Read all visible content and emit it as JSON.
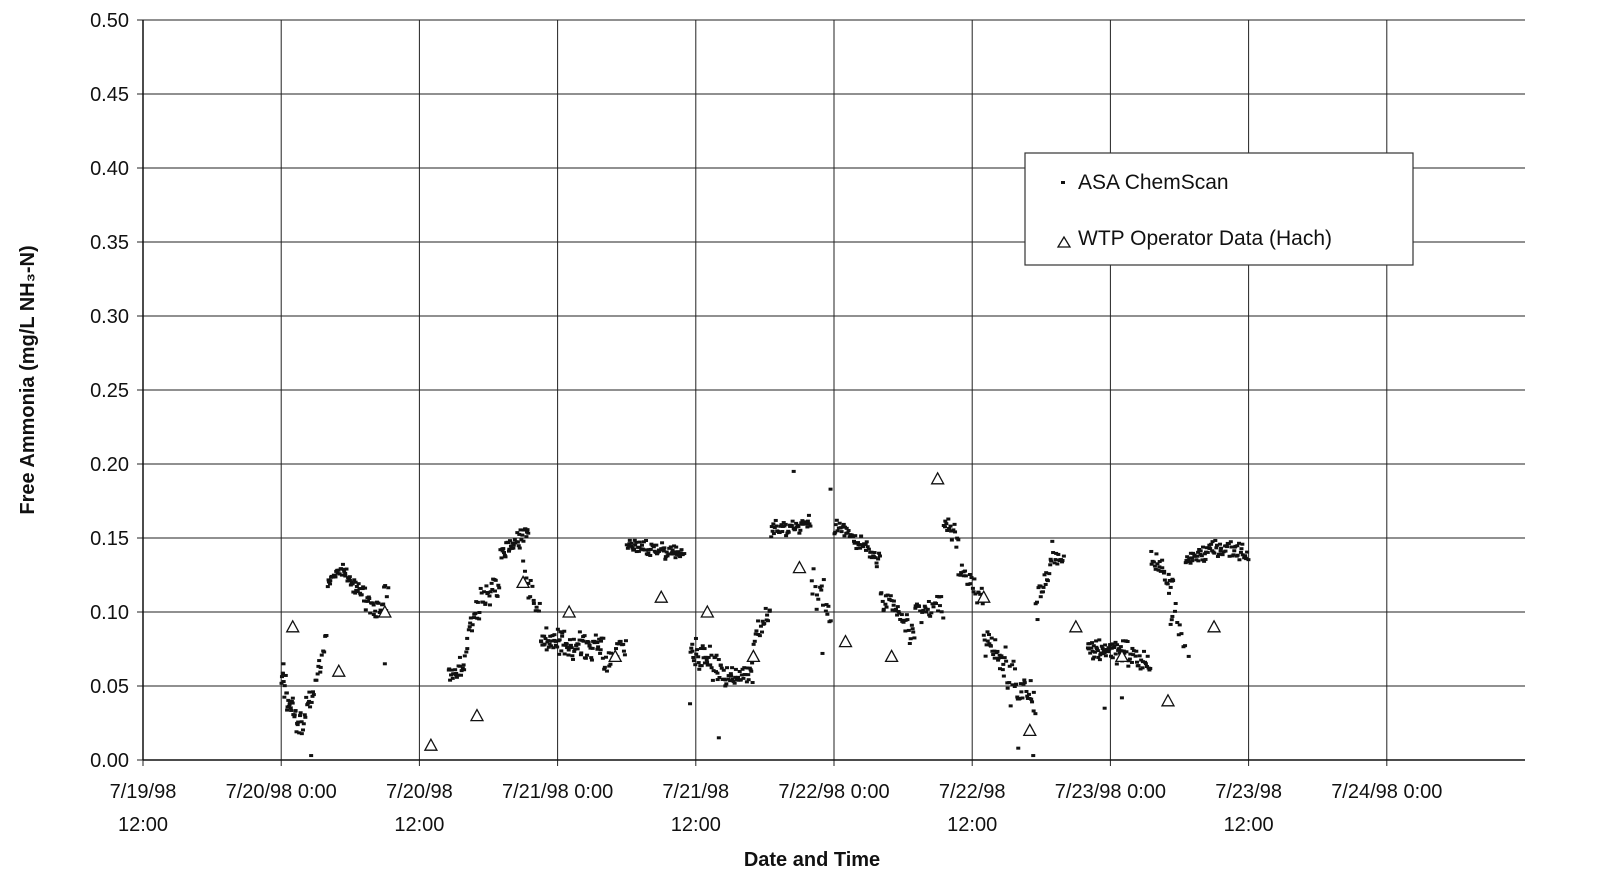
{
  "chart_data": {
    "type": "scatter",
    "xlabel": "Date and Time",
    "ylabel": "Free Ammonia (mg/L NH₃-N)",
    "ylim": [
      0,
      0.5
    ],
    "xlim_hours": [
      -12,
      108
    ],
    "x_ticks": [
      {
        "hour": -12,
        "line1": "7/19/98",
        "line2": "12:00"
      },
      {
        "hour": 0,
        "line1": "7/20/98 0:00",
        "line2": ""
      },
      {
        "hour": 12,
        "line1": "7/20/98",
        "line2": "12:00"
      },
      {
        "hour": 24,
        "line1": "7/21/98 0:00",
        "line2": ""
      },
      {
        "hour": 36,
        "line1": "7/21/98",
        "line2": "12:00"
      },
      {
        "hour": 48,
        "line1": "7/22/98 0:00",
        "line2": ""
      },
      {
        "hour": 60,
        "line1": "7/22/98",
        "line2": "12:00"
      },
      {
        "hour": 72,
        "line1": "7/23/98 0:00",
        "line2": ""
      },
      {
        "hour": 84,
        "line1": "7/23/98",
        "line2": "12:00"
      },
      {
        "hour": 96,
        "line1": "7/24/98 0:00",
        "line2": ""
      }
    ],
    "y_ticks": [
      "0.00",
      "0.05",
      "0.10",
      "0.15",
      "0.20",
      "0.25",
      "0.30",
      "0.35",
      "0.40",
      "0.45",
      "0.50"
    ],
    "grid": true,
    "legend_position": "top-right",
    "series": [
      {
        "name": "ASA ChemScan",
        "marker": "dot",
        "segments": [
          {
            "x0": 0.0,
            "x1": 1.5,
            "y0": 0.055,
            "y1": 0.025,
            "spread": 0.015,
            "n": 30
          },
          {
            "x0": 1.5,
            "x1": 2.5,
            "y0": 0.02,
            "y1": 0.04,
            "spread": 0.015,
            "n": 14
          },
          {
            "x0": 2.5,
            "x1": 4.0,
            "y0": 0.035,
            "y1": 0.085,
            "spread": 0.012,
            "n": 18
          },
          {
            "x0": 4.0,
            "x1": 5.5,
            "y0": 0.12,
            "y1": 0.13,
            "spread": 0.007,
            "n": 24
          },
          {
            "x0": 5.5,
            "x1": 8.5,
            "y0": 0.125,
            "y1": 0.1,
            "spread": 0.01,
            "n": 45
          },
          {
            "x0": 8.5,
            "x1": 9.3,
            "y0": 0.1,
            "y1": 0.115,
            "spread": 0.015,
            "n": 10
          },
          {
            "x0": 14.5,
            "x1": 16.0,
            "y0": 0.055,
            "y1": 0.065,
            "spread": 0.01,
            "n": 22
          },
          {
            "x0": 16.0,
            "x1": 17.5,
            "y0": 0.08,
            "y1": 0.11,
            "spread": 0.015,
            "n": 20
          },
          {
            "x0": 17.5,
            "x1": 19.0,
            "y0": 0.11,
            "y1": 0.12,
            "spread": 0.012,
            "n": 20
          },
          {
            "x0": 19.0,
            "x1": 21.5,
            "y0": 0.14,
            "y1": 0.155,
            "spread": 0.01,
            "n": 38
          },
          {
            "x0": 21.0,
            "x1": 22.5,
            "y0": 0.13,
            "y1": 0.1,
            "spread": 0.02,
            "n": 16
          },
          {
            "x0": 22.5,
            "x1": 28.0,
            "y0": 0.08,
            "y1": 0.075,
            "spread": 0.013,
            "n": 90
          },
          {
            "x0": 28.0,
            "x1": 30.0,
            "y0": 0.065,
            "y1": 0.08,
            "spread": 0.012,
            "n": 22
          },
          {
            "x0": 30.0,
            "x1": 35.0,
            "y0": 0.145,
            "y1": 0.14,
            "spread": 0.008,
            "n": 75
          },
          {
            "x0": 35.5,
            "x1": 38.5,
            "y0": 0.075,
            "y1": 0.06,
            "spread": 0.015,
            "n": 45
          },
          {
            "x0": 38.5,
            "x1": 41.0,
            "y0": 0.055,
            "y1": 0.06,
            "spread": 0.012,
            "n": 36
          },
          {
            "x0": 41.0,
            "x1": 42.5,
            "y0": 0.08,
            "y1": 0.1,
            "spread": 0.012,
            "n": 18
          },
          {
            "x0": 42.5,
            "x1": 46.0,
            "y0": 0.155,
            "y1": 0.16,
            "spread": 0.008,
            "n": 50
          },
          {
            "x0": 46.0,
            "x1": 47.8,
            "y0": 0.12,
            "y1": 0.1,
            "spread": 0.025,
            "n": 18
          },
          {
            "x0": 48.0,
            "x1": 52.0,
            "y0": 0.16,
            "y1": 0.135,
            "spread": 0.01,
            "n": 55
          },
          {
            "x0": 52.0,
            "x1": 55.0,
            "y0": 0.11,
            "y1": 0.085,
            "spread": 0.015,
            "n": 38
          },
          {
            "x0": 55.0,
            "x1": 57.5,
            "y0": 0.1,
            "y1": 0.105,
            "spread": 0.012,
            "n": 28
          },
          {
            "x0": 57.5,
            "x1": 58.8,
            "y0": 0.16,
            "y1": 0.15,
            "spread": 0.01,
            "n": 16
          },
          {
            "x0": 58.8,
            "x1": 61.0,
            "y0": 0.13,
            "y1": 0.11,
            "spread": 0.013,
            "n": 24
          },
          {
            "x0": 61.0,
            "x1": 63.0,
            "y0": 0.08,
            "y1": 0.065,
            "spread": 0.013,
            "n": 30
          },
          {
            "x0": 63.0,
            "x1": 65.5,
            "y0": 0.055,
            "y1": 0.04,
            "spread": 0.02,
            "n": 32
          },
          {
            "x0": 65.5,
            "x1": 67.0,
            "y0": 0.1,
            "y1": 0.14,
            "spread": 0.015,
            "n": 20
          },
          {
            "x0": 67.0,
            "x1": 68.0,
            "y0": 0.14,
            "y1": 0.13,
            "spread": 0.01,
            "n": 12
          },
          {
            "x0": 70.0,
            "x1": 73.5,
            "y0": 0.075,
            "y1": 0.075,
            "spread": 0.013,
            "n": 60
          },
          {
            "x0": 73.5,
            "x1": 75.5,
            "y0": 0.07,
            "y1": 0.065,
            "spread": 0.013,
            "n": 26
          },
          {
            "x0": 75.5,
            "x1": 77.5,
            "y0": 0.135,
            "y1": 0.12,
            "spread": 0.01,
            "n": 26
          },
          {
            "x0": 77.0,
            "x1": 78.5,
            "y0": 0.11,
            "y1": 0.075,
            "spread": 0.015,
            "n": 12
          },
          {
            "x0": 78.5,
            "x1": 80.5,
            "y0": 0.135,
            "y1": 0.14,
            "spread": 0.01,
            "n": 30
          },
          {
            "x0": 80.5,
            "x1": 84.0,
            "y0": 0.145,
            "y1": 0.14,
            "spread": 0.01,
            "n": 48
          }
        ],
        "outliers": [
          {
            "x": 0.2,
            "y": 0.065
          },
          {
            "x": 2.6,
            "y": 0.003
          },
          {
            "x": 9.0,
            "y": 0.065
          },
          {
            "x": 38.0,
            "y": 0.015
          },
          {
            "x": 35.5,
            "y": 0.038
          },
          {
            "x": 44.5,
            "y": 0.195
          },
          {
            "x": 47.7,
            "y": 0.183
          },
          {
            "x": 47.0,
            "y": 0.072
          },
          {
            "x": 64.0,
            "y": 0.008
          },
          {
            "x": 65.3,
            "y": 0.003
          },
          {
            "x": 73.0,
            "y": 0.042
          },
          {
            "x": 71.5,
            "y": 0.035
          },
          {
            "x": 78.8,
            "y": 0.07
          }
        ]
      },
      {
        "name": "WTP Operator Data (Hach)",
        "marker": "triangle",
        "points": [
          {
            "x": 1.0,
            "y": 0.09
          },
          {
            "x": 5.0,
            "y": 0.06
          },
          {
            "x": 9.0,
            "y": 0.1
          },
          {
            "x": 13.0,
            "y": 0.01
          },
          {
            "x": 17.0,
            "y": 0.03
          },
          {
            "x": 21.0,
            "y": 0.12
          },
          {
            "x": 25.0,
            "y": 0.1
          },
          {
            "x": 29.0,
            "y": 0.07
          },
          {
            "x": 33.0,
            "y": 0.11
          },
          {
            "x": 37.0,
            "y": 0.1
          },
          {
            "x": 41.0,
            "y": 0.07
          },
          {
            "x": 45.0,
            "y": 0.13
          },
          {
            "x": 49.0,
            "y": 0.08
          },
          {
            "x": 53.0,
            "y": 0.07
          },
          {
            "x": 57.0,
            "y": 0.19
          },
          {
            "x": 61.0,
            "y": 0.11
          },
          {
            "x": 65.0,
            "y": 0.02
          },
          {
            "x": 69.0,
            "y": 0.09
          },
          {
            "x": 73.0,
            "y": 0.07
          },
          {
            "x": 77.0,
            "y": 0.04
          },
          {
            "x": 81.0,
            "y": 0.09
          }
        ]
      }
    ]
  }
}
